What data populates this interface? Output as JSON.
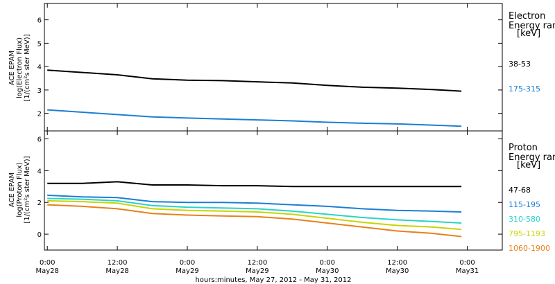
{
  "x_axis": {
    "title": "hours:minutes, May 27, 2012 - May 31, 2012",
    "ticks": [
      {
        "t": 0,
        "time": "0:00",
        "date": "May28"
      },
      {
        "t": 12,
        "time": "12:00",
        "date": "May28"
      },
      {
        "t": 24,
        "time": "0:00",
        "date": "May29"
      },
      {
        "t": 36,
        "time": "12:00",
        "date": "May29"
      },
      {
        "t": 48,
        "time": "0:00",
        "date": "May30"
      },
      {
        "t": 60,
        "time": "12:00",
        "date": "May30"
      },
      {
        "t": 72,
        "time": "0:00",
        "date": "May31"
      }
    ]
  },
  "electron_panel": {
    "ylabel_lines": [
      "ACE EPAM",
      "log(Electron Flux)",
      "[1/(cm²s ster MeV)]"
    ],
    "legend_title_lines": [
      "Electron",
      "Energy range",
      "[keV]"
    ]
  },
  "proton_panel": {
    "ylabel_lines": [
      "ACE EPAM",
      "log(Proton Flux)",
      "[1/(cm²s ster MeV)]"
    ],
    "legend_title_lines": [
      "Proton",
      "Energy range",
      "[keV]"
    ]
  },
  "chart_data": [
    {
      "type": "line",
      "title": "",
      "xlabel": "hours:minutes, May 27, 2012 - May 31, 2012",
      "ylabel": "log(Electron Flux) [1/(cm²s ster MeV)]",
      "xlim": [
        -0.5,
        78
      ],
      "ylim": [
        1.25,
        6.7
      ],
      "x_unit": "hours since May28 0:00",
      "x": [
        0,
        6,
        12,
        18,
        24,
        30,
        36,
        42,
        48,
        54,
        60,
        66,
        71
      ],
      "series": [
        {
          "name": "38-53",
          "color": "#000000",
          "values": [
            3.85,
            3.75,
            3.65,
            3.48,
            3.42,
            3.4,
            3.35,
            3.3,
            3.2,
            3.12,
            3.08,
            3.02,
            2.95
          ]
        },
        {
          "name": "175-315",
          "color": "#1a7fd4",
          "values": [
            2.15,
            2.05,
            1.95,
            1.85,
            1.8,
            1.76,
            1.72,
            1.68,
            1.62,
            1.58,
            1.55,
            1.5,
            1.45
          ]
        }
      ],
      "yticks": [
        2,
        3,
        4,
        5,
        6
      ],
      "grid": false,
      "legend_placement": "right"
    },
    {
      "type": "line",
      "title": "",
      "xlabel": "hours:minutes, May 27, 2012 - May 31, 2012",
      "ylabel": "log(Proton Flux) [1/(cm²s ster MeV)]",
      "xlim": [
        -0.5,
        78
      ],
      "ylim": [
        -1.0,
        6.5
      ],
      "x_unit": "hours since May28 0:00",
      "x": [
        0,
        6,
        12,
        18,
        24,
        30,
        36,
        42,
        48,
        54,
        60,
        66,
        71
      ],
      "series": [
        {
          "name": "47-68",
          "color": "#000000",
          "values": [
            3.2,
            3.2,
            3.3,
            3.1,
            3.1,
            3.05,
            3.05,
            3.0,
            3.0,
            3.0,
            3.0,
            3.0,
            3.0
          ]
        },
        {
          "name": "115-195",
          "color": "#1a7fd4",
          "values": [
            2.45,
            2.35,
            2.3,
            2.05,
            2.0,
            2.0,
            1.95,
            1.85,
            1.75,
            1.6,
            1.5,
            1.45,
            1.4
          ]
        },
        {
          "name": "310-580",
          "color": "#2ad3c8",
          "values": [
            2.25,
            2.2,
            2.1,
            1.8,
            1.7,
            1.65,
            1.6,
            1.45,
            1.25,
            1.05,
            0.9,
            0.8,
            0.7
          ]
        },
        {
          "name": "795-1193",
          "color": "#c8d400",
          "values": [
            2.1,
            2.05,
            1.95,
            1.6,
            1.5,
            1.45,
            1.4,
            1.25,
            1.0,
            0.75,
            0.55,
            0.45,
            0.3
          ]
        },
        {
          "name": "1060-1900",
          "color": "#e8801a",
          "values": [
            1.85,
            1.75,
            1.6,
            1.3,
            1.2,
            1.15,
            1.1,
            0.95,
            0.7,
            0.45,
            0.2,
            0.05,
            -0.15
          ]
        }
      ],
      "yticks": [
        0,
        2,
        4,
        6
      ],
      "grid": false,
      "legend_placement": "right"
    }
  ]
}
